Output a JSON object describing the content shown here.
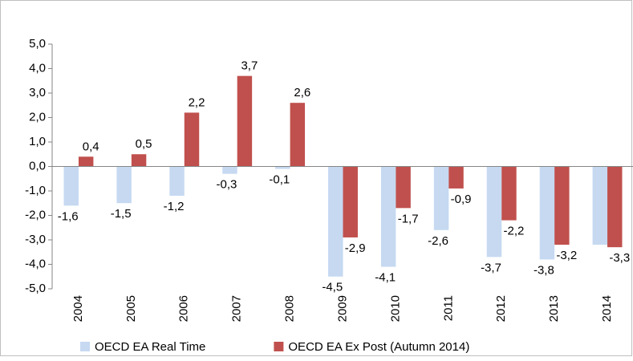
{
  "chart_data": {
    "type": "bar",
    "categories": [
      "2004",
      "2005",
      "2006",
      "2007",
      "2008",
      "2009",
      "2010",
      "2011",
      "2012",
      "2013",
      "2014"
    ],
    "series": [
      {
        "name": "OECD EA Real Time",
        "color": "#c6d9f1",
        "values": [
          -1.6,
          -1.5,
          -1.2,
          -0.3,
          -0.1,
          -4.5,
          -4.1,
          -2.6,
          -3.7,
          -3.8,
          -3.2
        ],
        "value_labels": [
          "-1,6",
          "-1,5",
          "-1,2",
          "-0,3",
          "-0,1",
          "-4,5",
          "-4,1",
          "-2,6",
          "-3,7",
          "-3,8",
          null
        ]
      },
      {
        "name": "OECD EA Ex Post (Autumn 2014)",
        "color": "#c0504d",
        "values": [
          0.4,
          0.5,
          2.2,
          3.7,
          2.6,
          -2.9,
          -1.7,
          -0.9,
          -2.2,
          -3.2,
          -3.3
        ],
        "value_labels": [
          "0,4",
          "0,5",
          "2,2",
          "3,7",
          "2,6",
          "-2,9",
          "-1,7",
          "-0,9",
          "-2,2",
          "-3,2",
          "-3,3"
        ]
      }
    ],
    "ylim": [
      -5,
      5
    ],
    "yticks": [
      {
        "value": -5,
        "label": "-5,0"
      },
      {
        "value": -4,
        "label": "-4,0"
      },
      {
        "value": -3,
        "label": "-3,0"
      },
      {
        "value": -2,
        "label": "-2,0"
      },
      {
        "value": -1,
        "label": "-1,0"
      },
      {
        "value": 0,
        "label": "0,0"
      },
      {
        "value": 1,
        "label": "1,0"
      },
      {
        "value": 2,
        "label": "2,0"
      },
      {
        "value": 3,
        "label": "3,0"
      },
      {
        "value": 4,
        "label": "4,0"
      },
      {
        "value": 5,
        "label": "5,0"
      }
    ],
    "grid": false,
    "legend": "bottom"
  }
}
